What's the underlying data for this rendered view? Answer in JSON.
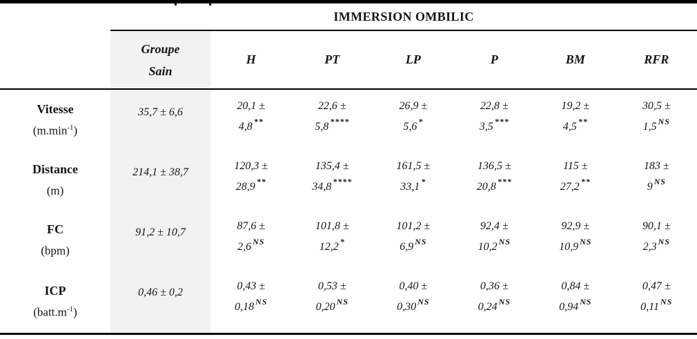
{
  "table": {
    "title": "IMMERSION OMBILIC",
    "group_header": {
      "line1": "Groupe",
      "line2": "Sain"
    },
    "condition_headers": [
      "H",
      "PT",
      "LP",
      "P",
      "BM",
      "RFR"
    ],
    "rows": [
      {
        "label": "Vitesse",
        "unit_pre": "(m.min",
        "unit_sup": "-1",
        "unit_post": ")",
        "sain": "35,7 ± 6,6",
        "cells": [
          {
            "line1": "20,1 ±",
            "line2": "4,8",
            "sig": "**"
          },
          {
            "line1": "22,6 ±",
            "line2": "5,8",
            "sig": "****"
          },
          {
            "line1": "26,9 ±",
            "line2": "5,6",
            "sig": "*"
          },
          {
            "line1": "22,8 ±",
            "line2": "3,5",
            "sig": "***"
          },
          {
            "line1": "19,2 ±",
            "line2": "4,5",
            "sig": "**"
          },
          {
            "line1": "30,5 ±",
            "line2": "1,5",
            "sig": "NS"
          }
        ]
      },
      {
        "label": "Distance",
        "unit_pre": "(m)",
        "unit_sup": "",
        "unit_post": "",
        "sain": "214,1 ± 38,7",
        "cells": [
          {
            "line1": "120,3 ±",
            "line2": "28,9",
            "sig": "**"
          },
          {
            "line1": "135,4 ±",
            "line2": "34,8",
            "sig": "****"
          },
          {
            "line1": "161,5 ±",
            "line2": "33,1",
            "sig": "*"
          },
          {
            "line1": "136,5 ±",
            "line2": "20,8",
            "sig": "***"
          },
          {
            "line1": "115 ±",
            "line2": "27,2",
            "sig": "**"
          },
          {
            "line1": "183 ±",
            "line2": "9",
            "sig": "NS"
          }
        ]
      },
      {
        "label": "FC",
        "unit_pre": "(bpm)",
        "unit_sup": "",
        "unit_post": "",
        "sain": "91,2 ± 10,7",
        "cells": [
          {
            "line1": "87,6 ±",
            "line2": "2,6",
            "sig": "NS"
          },
          {
            "line1": "101,8 ±",
            "line2": "12,2",
            "sig": "*"
          },
          {
            "line1": "101,2 ±",
            "line2": "6,9",
            "sig": "NS"
          },
          {
            "line1": "92,4 ±",
            "line2": "10,2",
            "sig": "NS"
          },
          {
            "line1": "92,9 ±",
            "line2": "10,9",
            "sig": "NS"
          },
          {
            "line1": "90,1 ±",
            "line2": "2,3",
            "sig": "NS"
          }
        ]
      },
      {
        "label": "ICP",
        "unit_pre": "(batt.m",
        "unit_sup": "-1",
        "unit_post": ")",
        "sain": "0,46 ± 0,2",
        "cells": [
          {
            "line1": "0,43 ±",
            "line2": "0,18",
            "sig": "NS"
          },
          {
            "line1": "0,53 ±",
            "line2": "0,20",
            "sig": "NS"
          },
          {
            "line1": "0,40 ±",
            "line2": "0,30",
            "sig": "NS"
          },
          {
            "line1": "0,36 ±",
            "line2": "0,24",
            "sig": "NS"
          },
          {
            "line1": "0,84 ±",
            "line2": "0,94",
            "sig": "NS"
          },
          {
            "line1": "0,47 ±",
            "line2": "0,11",
            "sig": "NS"
          }
        ]
      }
    ]
  }
}
